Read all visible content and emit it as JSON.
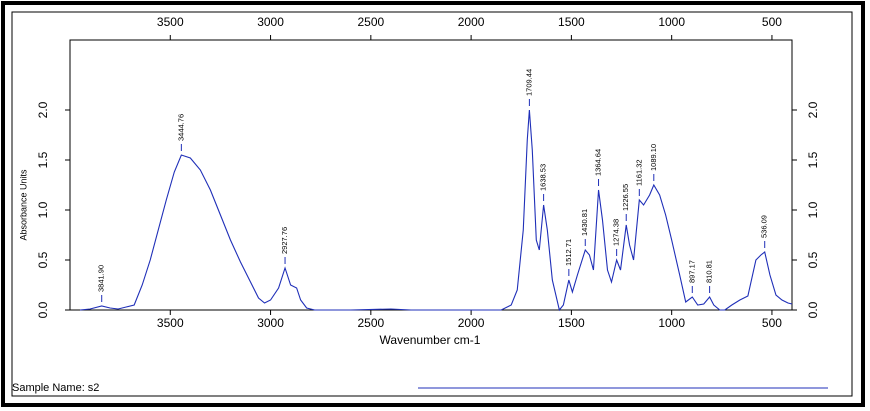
{
  "chart_data": {
    "type": "line",
    "x_label": "Wavenumber cm-1",
    "y_label": "Absorbance Units",
    "footer": "Sample Name: s2",
    "color": "#1f2fb8",
    "xlim": [
      4000,
      400
    ],
    "xticks": [
      3500,
      3000,
      2500,
      2000,
      1500,
      1000,
      500
    ],
    "ylim": [
      0,
      2.7
    ],
    "yticks": [
      {
        "value": 0,
        "label": "0.0"
      },
      0.5,
      {
        "value": 1,
        "label": "1.0"
      },
      1.5,
      {
        "value": 2,
        "label": "2.0"
      }
    ],
    "x": [
      3950,
      3900,
      3841.9,
      3800,
      3760,
      3720,
      3680,
      3640,
      3600,
      3560,
      3520,
      3480,
      3444.76,
      3400,
      3350,
      3300,
      3250,
      3200,
      3150,
      3100,
      3060,
      3030,
      3000,
      2960,
      2927.76,
      2900,
      2870,
      2850,
      2820,
      2780,
      2600,
      2400,
      2300,
      2000,
      1850,
      1800,
      1770,
      1740,
      1720,
      1709.44,
      1695,
      1675,
      1660,
      1638.53,
      1620,
      1595,
      1560,
      1540,
      1512.71,
      1495,
      1470,
      1430.81,
      1410,
      1390,
      1364.64,
      1345,
      1320,
      1300,
      1274.38,
      1255,
      1226.55,
      1210,
      1190,
      1161.32,
      1140,
      1110,
      1089.1,
      1060,
      1030,
      1000,
      960,
      930,
      897.17,
      870,
      840,
      810.81,
      790,
      760,
      735,
      700,
      660,
      620,
      580,
      555,
      536.09,
      510,
      480,
      450,
      420,
      400
    ],
    "values": [
      0.0,
      0.01,
      0.04,
      0.02,
      0.01,
      0.03,
      0.05,
      0.25,
      0.5,
      0.8,
      1.1,
      1.38,
      1.55,
      1.52,
      1.4,
      1.2,
      0.95,
      0.7,
      0.48,
      0.28,
      0.12,
      0.07,
      0.1,
      0.22,
      0.42,
      0.25,
      0.22,
      0.1,
      0.02,
      0.0,
      0.0,
      0.01,
      0.0,
      0.0,
      0.0,
      0.05,
      0.2,
      0.8,
      1.7,
      2.0,
      1.6,
      0.7,
      0.6,
      1.05,
      0.8,
      0.3,
      0.0,
      0.05,
      0.3,
      0.18,
      0.35,
      0.6,
      0.55,
      0.4,
      1.2,
      0.9,
      0.4,
      0.28,
      0.5,
      0.4,
      0.85,
      0.65,
      0.5,
      1.1,
      1.05,
      1.15,
      1.25,
      1.15,
      0.95,
      0.7,
      0.35,
      0.08,
      0.13,
      0.05,
      0.06,
      0.13,
      0.05,
      0.0,
      0.0,
      0.05,
      0.1,
      0.14,
      0.5,
      0.55,
      0.58,
      0.35,
      0.15,
      0.1,
      0.07,
      0.06
    ],
    "peaks": [
      {
        "x": 3841.9,
        "y": 0.04,
        "label": "3841.90"
      },
      {
        "x": 3444.76,
        "y": 1.55,
        "label": "3444.76"
      },
      {
        "x": 2927.76,
        "y": 0.42,
        "label": "2927.76"
      },
      {
        "x": 1709.44,
        "y": 2.0,
        "label": "1709.44"
      },
      {
        "x": 1638.53,
        "y": 1.05,
        "label": "1638.53"
      },
      {
        "x": 1512.71,
        "y": 0.3,
        "label": "1512.71"
      },
      {
        "x": 1430.81,
        "y": 0.6,
        "label": "1430.81"
      },
      {
        "x": 1364.64,
        "y": 1.2,
        "label": "1364.64"
      },
      {
        "x": 1274.38,
        "y": 0.5,
        "label": "1274.38"
      },
      {
        "x": 1226.55,
        "y": 0.85,
        "label": "1226.55"
      },
      {
        "x": 1161.32,
        "y": 1.1,
        "label": "1161.32"
      },
      {
        "x": 1089.1,
        "y": 1.25,
        "label": "1089.10"
      },
      {
        "x": 897.17,
        "y": 0.13,
        "label": "897.17"
      },
      {
        "x": 810.81,
        "y": 0.13,
        "label": "810.81"
      },
      {
        "x": 536.09,
        "y": 0.58,
        "label": "536.09"
      }
    ]
  }
}
